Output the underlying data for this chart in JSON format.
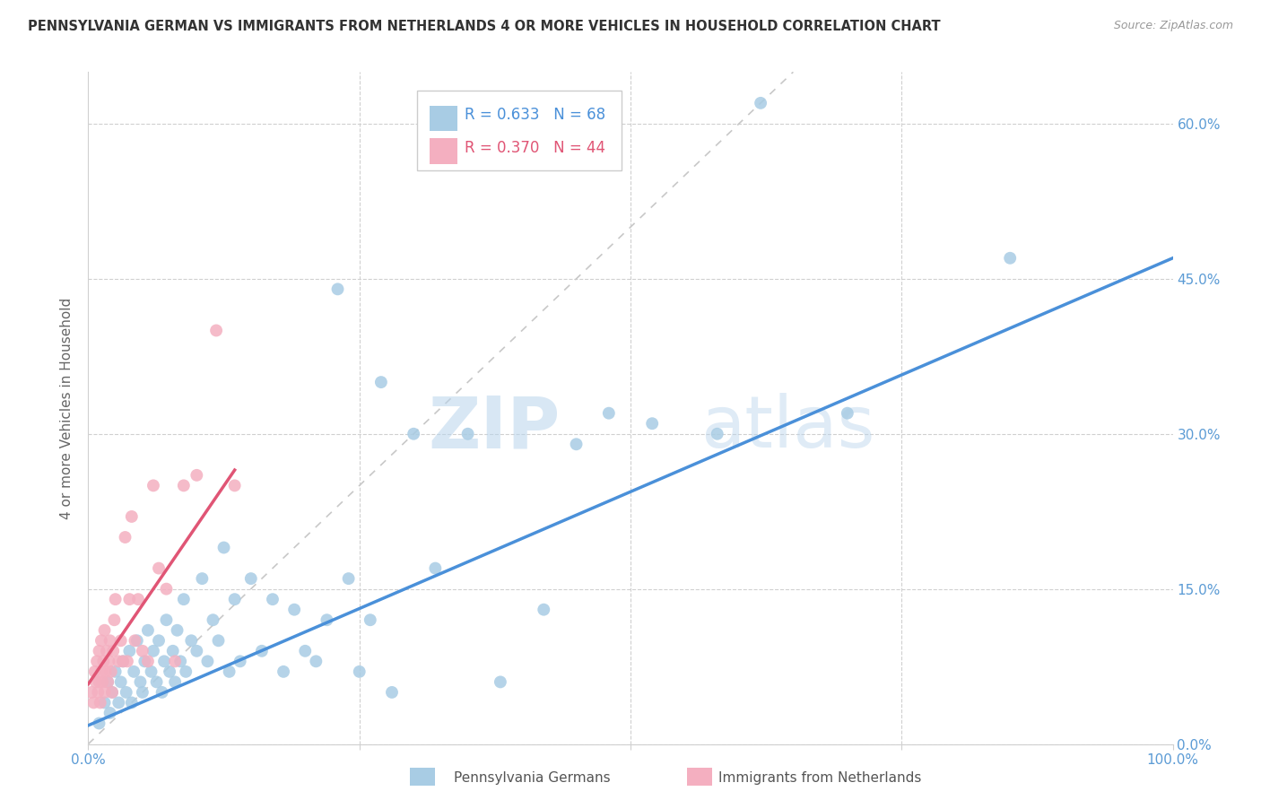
{
  "title": "PENNSYLVANIA GERMAN VS IMMIGRANTS FROM NETHERLANDS 4 OR MORE VEHICLES IN HOUSEHOLD CORRELATION CHART",
  "source": "Source: ZipAtlas.com",
  "ylabel_label": "4 or more Vehicles in Household",
  "legend_label_1": "Pennsylvania Germans",
  "legend_label_2": "Immigrants from Netherlands",
  "R1": 0.633,
  "N1": 68,
  "R2": 0.37,
  "N2": 44,
  "color_blue": "#a8cce4",
  "color_pink": "#f4afc0",
  "line_color_blue": "#4a90d9",
  "line_color_pink": "#e05575",
  "diagonal_color": "#c8c8c8",
  "blue_line_x0": 0.0,
  "blue_line_y0": 0.018,
  "blue_line_x1": 1.0,
  "blue_line_y1": 0.47,
  "pink_line_x0": 0.0,
  "pink_line_y0": 0.058,
  "pink_line_x1": 0.135,
  "pink_line_y1": 0.265,
  "xlim": [
    0.0,
    1.0
  ],
  "ylim": [
    0.0,
    0.65
  ],
  "x_tick_vals": [
    0.0,
    0.25,
    0.5,
    0.75,
    1.0
  ],
  "x_tick_labels": [
    "0.0%",
    "",
    "",
    "",
    "100.0%"
  ],
  "y_tick_vals": [
    0.0,
    0.15,
    0.3,
    0.45,
    0.6
  ],
  "y_tick_labels": [
    "0.0%",
    "15.0%",
    "30.0%",
    "45.0%",
    "60.0%"
  ],
  "blue_scatter_x": [
    0.01,
    0.015,
    0.018,
    0.02,
    0.022,
    0.025,
    0.028,
    0.03,
    0.032,
    0.035,
    0.038,
    0.04,
    0.042,
    0.045,
    0.048,
    0.05,
    0.052,
    0.055,
    0.058,
    0.06,
    0.063,
    0.065,
    0.068,
    0.07,
    0.072,
    0.075,
    0.078,
    0.08,
    0.082,
    0.085,
    0.088,
    0.09,
    0.095,
    0.1,
    0.105,
    0.11,
    0.115,
    0.12,
    0.125,
    0.13,
    0.135,
    0.14,
    0.15,
    0.16,
    0.17,
    0.18,
    0.19,
    0.2,
    0.21,
    0.22,
    0.23,
    0.24,
    0.25,
    0.26,
    0.27,
    0.28,
    0.3,
    0.32,
    0.35,
    0.38,
    0.42,
    0.45,
    0.48,
    0.52,
    0.58,
    0.62,
    0.7,
    0.85
  ],
  "blue_scatter_y": [
    0.02,
    0.04,
    0.06,
    0.03,
    0.05,
    0.07,
    0.04,
    0.06,
    0.08,
    0.05,
    0.09,
    0.04,
    0.07,
    0.1,
    0.06,
    0.05,
    0.08,
    0.11,
    0.07,
    0.09,
    0.06,
    0.1,
    0.05,
    0.08,
    0.12,
    0.07,
    0.09,
    0.06,
    0.11,
    0.08,
    0.14,
    0.07,
    0.1,
    0.09,
    0.16,
    0.08,
    0.12,
    0.1,
    0.19,
    0.07,
    0.14,
    0.08,
    0.16,
    0.09,
    0.14,
    0.07,
    0.13,
    0.09,
    0.08,
    0.12,
    0.44,
    0.16,
    0.07,
    0.12,
    0.35,
    0.05,
    0.3,
    0.17,
    0.3,
    0.06,
    0.13,
    0.29,
    0.32,
    0.31,
    0.3,
    0.62,
    0.32,
    0.47
  ],
  "pink_scatter_x": [
    0.003,
    0.005,
    0.006,
    0.007,
    0.008,
    0.009,
    0.01,
    0.01,
    0.011,
    0.012,
    0.012,
    0.013,
    0.014,
    0.015,
    0.015,
    0.016,
    0.017,
    0.018,
    0.019,
    0.02,
    0.021,
    0.022,
    0.023,
    0.024,
    0.025,
    0.028,
    0.03,
    0.032,
    0.034,
    0.036,
    0.038,
    0.04,
    0.043,
    0.046,
    0.05,
    0.055,
    0.06,
    0.065,
    0.072,
    0.08,
    0.088,
    0.1,
    0.118,
    0.135
  ],
  "pink_scatter_y": [
    0.05,
    0.04,
    0.07,
    0.06,
    0.08,
    0.05,
    0.06,
    0.09,
    0.04,
    0.07,
    0.1,
    0.06,
    0.08,
    0.05,
    0.11,
    0.07,
    0.09,
    0.06,
    0.08,
    0.1,
    0.07,
    0.05,
    0.09,
    0.12,
    0.14,
    0.08,
    0.1,
    0.08,
    0.2,
    0.08,
    0.14,
    0.22,
    0.1,
    0.14,
    0.09,
    0.08,
    0.25,
    0.17,
    0.15,
    0.08,
    0.25,
    0.26,
    0.4,
    0.25
  ]
}
